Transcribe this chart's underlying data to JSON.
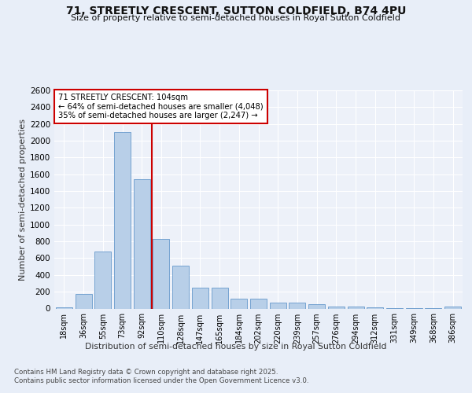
{
  "title": "71, STREETLY CRESCENT, SUTTON COLDFIELD, B74 4PU",
  "subtitle": "Size of property relative to semi-detached houses in Royal Sutton Coldfield",
  "xlabel": "Distribution of semi-detached houses by size in Royal Sutton Coldfield",
  "ylabel": "Number of semi-detached properties",
  "categories": [
    "18sqm",
    "36sqm",
    "55sqm",
    "73sqm",
    "92sqm",
    "110sqm",
    "128sqm",
    "147sqm",
    "165sqm",
    "184sqm",
    "202sqm",
    "220sqm",
    "239sqm",
    "257sqm",
    "276sqm",
    "294sqm",
    "312sqm",
    "331sqm",
    "349sqm",
    "368sqm",
    "386sqm"
  ],
  "values": [
    15,
    175,
    680,
    2100,
    1540,
    830,
    510,
    250,
    250,
    120,
    120,
    70,
    70,
    50,
    25,
    25,
    10,
    5,
    5,
    5,
    25
  ],
  "bar_color": "#b8cfe8",
  "bar_edge_color": "#6699cc",
  "property_line_bin": 4,
  "annotation_text": "71 STREETLY CRESCENT: 104sqm\n← 64% of semi-detached houses are smaller (4,048)\n35% of semi-detached houses are larger (2,247) →",
  "ylim": [
    0,
    2600
  ],
  "yticks": [
    0,
    200,
    400,
    600,
    800,
    1000,
    1200,
    1400,
    1600,
    1800,
    2000,
    2200,
    2400,
    2600
  ],
  "footer1": "Contains HM Land Registry data © Crown copyright and database right 2025.",
  "footer2": "Contains public sector information licensed under the Open Government Licence v3.0.",
  "bg_color": "#e8eef8",
  "plot_bg_color": "#edf1f9",
  "grid_color": "#ffffff",
  "annotation_box_color": "#ffffff",
  "annotation_border_color": "#cc0000",
  "red_line_color": "#cc0000",
  "title_color": "#111111",
  "text_color": "#333333"
}
